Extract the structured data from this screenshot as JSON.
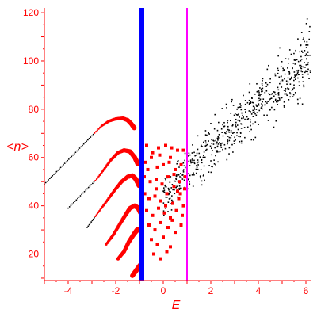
{
  "chart_data": {
    "type": "scatter",
    "title": "",
    "xlabel": "E",
    "ylabel": "<n>",
    "xlim": [
      -5,
      6.2
    ],
    "ylim": [
      9,
      122
    ],
    "x_ticks": [
      -4,
      -2,
      0,
      2,
      4,
      6
    ],
    "y_ticks": [
      20,
      40,
      60,
      80,
      100,
      120
    ],
    "grid": false,
    "legend": "none",
    "colors": {
      "axis": "#ff0000",
      "red_points": "#ff0000",
      "black_points": "#000000",
      "blue_line": "#0000ff",
      "magenta_line": "#ff00ff"
    },
    "vertical_lines": [
      {
        "x": -0.9,
        "color": "#0000ff",
        "style": "thick"
      },
      {
        "x": 1.0,
        "color": "#ff00ff",
        "style": "thin"
      }
    ],
    "branches": [
      {
        "name": "",
        "points": [
          [
            -5.0,
            49
          ],
          [
            -4.6,
            53
          ],
          [
            -4.2,
            57
          ],
          [
            -3.8,
            61
          ],
          [
            -3.4,
            65
          ],
          [
            -3.0,
            69
          ],
          [
            -2.6,
            73
          ],
          [
            -2.3,
            75
          ],
          [
            -2.0,
            76
          ],
          [
            -1.7,
            76.2
          ],
          [
            -1.5,
            75.5
          ],
          [
            -1.35,
            74
          ],
          [
            -1.2,
            72
          ]
        ]
      },
      {
        "name": "",
        "points": [
          [
            -4.0,
            39
          ],
          [
            -3.6,
            43
          ],
          [
            -3.2,
            47
          ],
          [
            -2.8,
            51
          ],
          [
            -2.5,
            55
          ],
          [
            -2.2,
            59
          ],
          [
            -1.9,
            62
          ],
          [
            -1.65,
            63
          ],
          [
            -1.4,
            62.5
          ],
          [
            -1.2,
            60
          ],
          [
            -1.05,
            57
          ]
        ]
      },
      {
        "name": "",
        "points": [
          [
            -3.2,
            31
          ],
          [
            -2.9,
            35
          ],
          [
            -2.6,
            39
          ],
          [
            -2.3,
            43
          ],
          [
            -2.0,
            47
          ],
          [
            -1.75,
            50
          ],
          [
            -1.5,
            52
          ],
          [
            -1.3,
            52.5
          ],
          [
            -1.15,
            51
          ],
          [
            -1.0,
            48
          ]
        ]
      },
      {
        "name": "",
        "points": [
          [
            -2.4,
            24
          ],
          [
            -2.1,
            28
          ],
          [
            -1.85,
            32
          ],
          [
            -1.6,
            36
          ],
          [
            -1.4,
            39
          ],
          [
            -1.2,
            40
          ],
          [
            -1.05,
            39
          ],
          [
            -0.95,
            37
          ]
        ]
      },
      {
        "name": "",
        "points": [
          [
            -1.9,
            18
          ],
          [
            -1.65,
            21
          ],
          [
            -1.45,
            25
          ],
          [
            -1.25,
            28
          ],
          [
            -1.1,
            30
          ],
          [
            -0.98,
            30
          ]
        ]
      },
      {
        "name": "",
        "points": [
          [
            -1.3,
            11
          ],
          [
            -1.15,
            13
          ],
          [
            -1.0,
            15
          ],
          [
            -0.9,
            16
          ]
        ]
      }
    ],
    "red_scatter": [
      [
        -0.7,
        65
      ],
      [
        -0.45,
        62
      ],
      [
        -0.2,
        64
      ],
      [
        0.1,
        65
      ],
      [
        0.35,
        64
      ],
      [
        0.6,
        63
      ],
      [
        0.85,
        63
      ],
      [
        -0.75,
        58
      ],
      [
        -0.5,
        60
      ],
      [
        -0.25,
        56
      ],
      [
        0.0,
        57
      ],
      [
        0.25,
        58
      ],
      [
        0.5,
        55
      ],
      [
        0.75,
        57
      ],
      [
        -0.8,
        52
      ],
      [
        -0.55,
        50
      ],
      [
        -0.3,
        51
      ],
      [
        -0.05,
        49
      ],
      [
        0.2,
        52
      ],
      [
        0.45,
        48
      ],
      [
        0.7,
        50
      ],
      [
        0.9,
        47
      ],
      [
        -0.78,
        45
      ],
      [
        -0.6,
        43
      ],
      [
        -0.35,
        44
      ],
      [
        -0.1,
        42
      ],
      [
        0.15,
        45
      ],
      [
        0.4,
        41
      ],
      [
        0.65,
        43
      ],
      [
        0.85,
        40
      ],
      [
        -0.7,
        38
      ],
      [
        -0.45,
        36
      ],
      [
        -0.2,
        39
      ],
      [
        0.05,
        37
      ],
      [
        0.3,
        35
      ],
      [
        0.55,
        38
      ],
      [
        0.8,
        36
      ],
      [
        -0.6,
        32
      ],
      [
        -0.35,
        30
      ],
      [
        -0.1,
        33
      ],
      [
        0.2,
        31
      ],
      [
        0.5,
        29
      ],
      [
        0.75,
        32
      ],
      [
        -0.5,
        26
      ],
      [
        -0.25,
        24
      ],
      [
        0.0,
        27
      ],
      [
        0.3,
        23
      ],
      [
        -0.4,
        20
      ],
      [
        -0.1,
        18
      ],
      [
        0.15,
        21
      ],
      [
        -0.65,
        55
      ],
      [
        0.3,
        60
      ],
      [
        0.6,
        46
      ],
      [
        0.1,
        40
      ],
      [
        -0.3,
        47
      ],
      [
        0.45,
        53
      ],
      [
        0.72,
        45
      ],
      [
        0.92,
        52
      ],
      [
        -0.15,
        61
      ],
      [
        0.38,
        34
      ]
    ],
    "black_scatter": {
      "x_range": [
        0.0,
        6.2
      ],
      "count": 620,
      "trend": {
        "slope": 9.5,
        "intercept": 44,
        "spread": 11
      }
    }
  }
}
